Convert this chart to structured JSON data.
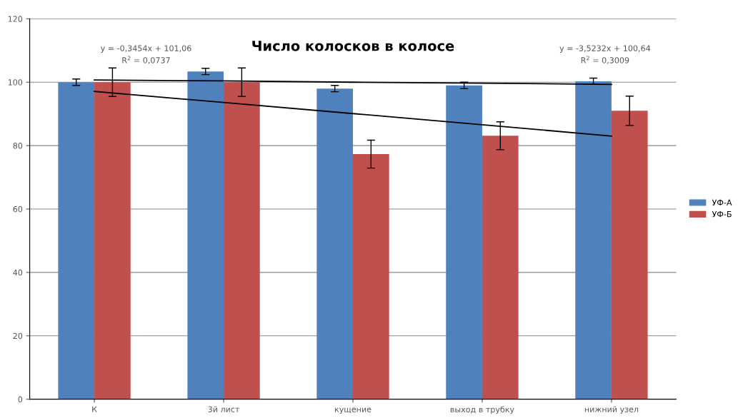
{
  "chart_data": {
    "type": "bar",
    "title": "Число колосков в колосе",
    "categories": [
      "К",
      "3й лист",
      "кущение",
      "выход в трубку",
      "нижний узел"
    ],
    "series": [
      {
        "name": "УФ-А",
        "color": "#4f81bd",
        "values": [
          100,
          103.4,
          98,
          99,
          100.3
        ],
        "errors": [
          1,
          1,
          1,
          1,
          1
        ]
      },
      {
        "name": "УФ-Б",
        "color": "#c0504d",
        "values": [
          100,
          100,
          77.3,
          83.1,
          91
        ],
        "errors": [
          4.5,
          4.5,
          4.4,
          4.4,
          4.6
        ]
      },
      {
        "type": "line",
        "color": "#000000",
        "values": [
          100.7,
          100.4,
          100,
          99.7,
          99.3
        ]
      },
      {
        "type": "line",
        "color": "#000000",
        "values": [
          97.1,
          93.6,
          90.1,
          86.6,
          83
        ]
      }
    ],
    "annotations": [
      "y = -0,3454x + 101,06\nR$^{2}$ = 0,0737",
      "y = -3,5232x + 100,64\nR$^{2}$ = 0,3009"
    ],
    "ylim": [
      0,
      120
    ],
    "yticks": [
      0,
      20,
      40,
      60,
      80,
      100,
      120
    ],
    "grid": "y",
    "legend": "right"
  }
}
